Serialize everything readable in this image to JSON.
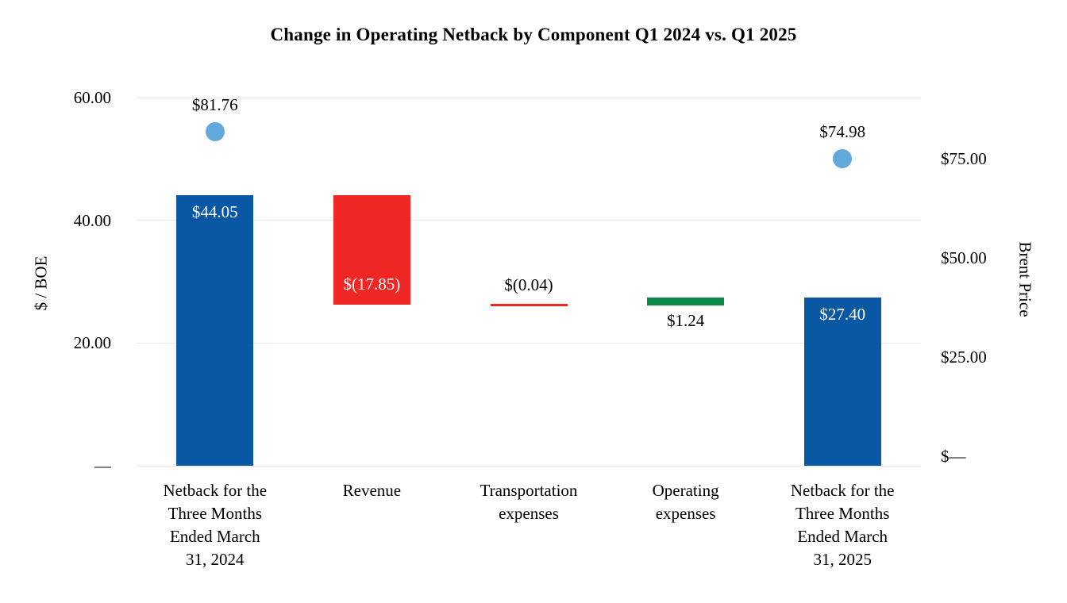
{
  "chart_data": {
    "type": "bar",
    "subtype": "waterfall-with-scatter",
    "title": "Change in Operating Netback by Component Q1 2024 vs. Q1 2025",
    "left_axis": {
      "label": "$ / BOE",
      "range": [
        0,
        60
      ],
      "grid": true,
      "ticks": [
        {
          "label": "60.00",
          "value": 60
        },
        {
          "label": "40.00",
          "value": 40
        },
        {
          "label": "20.00",
          "value": 20
        },
        {
          "label": "—",
          "value": 0
        }
      ]
    },
    "right_axis": {
      "label": "Brent Price",
      "ticks": [
        {
          "label": "$75.00",
          "value": 75
        },
        {
          "label": "$50.00",
          "value": 50
        },
        {
          "label": "$25.00",
          "value": 25
        },
        {
          "label": "$—",
          "value": 0
        }
      ]
    },
    "categories": [
      {
        "name": "netback-q1-2024",
        "lines": [
          "Netback for the",
          "Three Months",
          "Ended March",
          "31, 2024"
        ]
      },
      {
        "name": "revenue",
        "lines": [
          "Revenue"
        ]
      },
      {
        "name": "transportation-expenses",
        "lines": [
          "Transportation",
          "expenses"
        ]
      },
      {
        "name": "operating-expenses",
        "lines": [
          "Operating",
          "expenses"
        ]
      },
      {
        "name": "netback-q1-2025",
        "lines": [
          "Netback for the",
          "Three Months",
          "Ended March",
          "31, 2025"
        ]
      }
    ],
    "bars": [
      {
        "name": "netback-q1-2024",
        "from": 0,
        "to": 44.05,
        "value": 44.05,
        "label": "$44.05",
        "color": "#0A57A4",
        "label_color": "#ffffff",
        "label_pos": "inside-top"
      },
      {
        "name": "revenue",
        "from": 44.05,
        "to": 26.2,
        "value": -17.85,
        "label": "$(17.85)",
        "color": "#EE2724",
        "label_color": "#ffffff",
        "label_pos": "inside-bottom"
      },
      {
        "name": "transportation-expenses",
        "from": 26.2,
        "to": 26.16,
        "value": -0.04,
        "label": "$(0.04)",
        "color": "#EE2724",
        "label_color": "#000000",
        "label_pos": "above"
      },
      {
        "name": "operating-expenses",
        "from": 26.16,
        "to": 27.4,
        "value": 1.24,
        "label": "$1.24",
        "color": "#098A47",
        "label_color": "#000000",
        "label_pos": "below"
      },
      {
        "name": "netback-q1-2025",
        "from": 0,
        "to": 27.4,
        "value": 27.4,
        "label": "$27.40",
        "color": "#0A57A4",
        "label_color": "#ffffff",
        "label_pos": "inside-top"
      }
    ],
    "points": [
      {
        "name": "brent-price-q1-2024",
        "category_index": 0,
        "value": 81.76,
        "label": "$81.76",
        "color": "#61A8DB"
      },
      {
        "name": "brent-price-q1-2025",
        "category_index": 4,
        "value": 74.98,
        "label": "$74.98",
        "color": "#61A8DB"
      }
    ],
    "colors": {
      "gridline": "#e9e9e9",
      "text": "#000000",
      "increase_bar": "#0A57A4",
      "decrease_bar": "#EE2724",
      "positive_change_bar": "#098A47",
      "scatter_dot": "#61A8DB"
    }
  }
}
